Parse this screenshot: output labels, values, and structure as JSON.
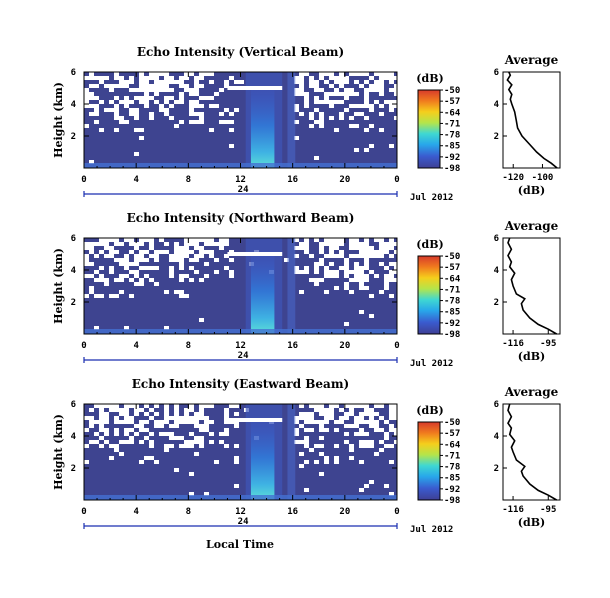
{
  "chart_data": {
    "type": "heatmap",
    "common": {
      "ylabel": "Height (km)",
      "yticks": [
        "2",
        "4",
        "6"
      ],
      "ylim": [
        0,
        6
      ],
      "xlim": [
        0,
        24
      ],
      "xticks": [
        "0",
        "4",
        "8",
        "12",
        "16",
        "20",
        "0"
      ],
      "date_label": "24",
      "month_label": "Jul 2012",
      "xlabel": "Local Time",
      "colorbar_unit": "(dB)",
      "colorbar_ticks": [
        "-50",
        "-57",
        "-64",
        "-71",
        "-78",
        "-85",
        "-92",
        "-98"
      ],
      "colors": [
        "#d73a2b",
        "#f07b1e",
        "#f5cf1c",
        "#b5e54a",
        "#3fd8d2",
        "#28a7ea",
        "#3a5bcf",
        "#3e3f95"
      ],
      "bg_color": "#3e4490",
      "profile_title": "Average",
      "profile_xlabel": "(dB)"
    },
    "panels": [
      {
        "title": "Echo Intensity (Vertical Beam)",
        "profile_xticks": [
          "-120",
          "-100"
        ],
        "profile_xlim": [
          -127,
          -88
        ],
        "profile": [
          [
            0,
            -90
          ],
          [
            0.3,
            -94
          ],
          [
            0.6,
            -99
          ],
          [
            1.0,
            -104
          ],
          [
            1.5,
            -109
          ],
          [
            2.0,
            -114
          ],
          [
            2.5,
            -117
          ],
          [
            3.0,
            -118
          ],
          [
            3.5,
            -119
          ],
          [
            4.0,
            -121
          ],
          [
            4.3,
            -122
          ],
          [
            4.6,
            -121
          ],
          [
            4.9,
            -123
          ],
          [
            5.2,
            -121
          ],
          [
            5.5,
            -124
          ],
          [
            5.8,
            -122
          ],
          [
            6.0,
            -123
          ]
        ]
      },
      {
        "title": "Echo Intensity (Northward Beam)",
        "profile_xticks": [
          "-116",
          "-95"
        ],
        "profile_xlim": [
          -122,
          -88
        ],
        "profile": [
          [
            0,
            -90
          ],
          [
            0.3,
            -95
          ],
          [
            0.6,
            -101
          ],
          [
            1.0,
            -106
          ],
          [
            1.5,
            -110
          ],
          [
            1.9,
            -111
          ],
          [
            2.2,
            -109
          ],
          [
            2.5,
            -114
          ],
          [
            3.0,
            -116
          ],
          [
            3.4,
            -117
          ],
          [
            3.8,
            -115
          ],
          [
            4.2,
            -118
          ],
          [
            4.5,
            -117
          ],
          [
            4.9,
            -119
          ],
          [
            5.3,
            -117
          ],
          [
            5.7,
            -119
          ],
          [
            6.0,
            -118
          ]
        ]
      },
      {
        "title": "Echo Intensity (Eastward Beam)",
        "profile_xticks": [
          "-116",
          "-95"
        ],
        "profile_xlim": [
          -122,
          -88
        ],
        "profile": [
          [
            0,
            -90
          ],
          [
            0.3,
            -95
          ],
          [
            0.6,
            -101
          ],
          [
            1.0,
            -106
          ],
          [
            1.5,
            -110
          ],
          [
            1.8,
            -111
          ],
          [
            2.1,
            -109
          ],
          [
            2.5,
            -114
          ],
          [
            3.0,
            -116
          ],
          [
            3.3,
            -117
          ],
          [
            3.7,
            -115
          ],
          [
            4.1,
            -118
          ],
          [
            4.5,
            -117
          ],
          [
            4.8,
            -119
          ],
          [
            5.2,
            -117
          ],
          [
            5.6,
            -119
          ],
          [
            6.0,
            -118
          ]
        ]
      }
    ]
  }
}
